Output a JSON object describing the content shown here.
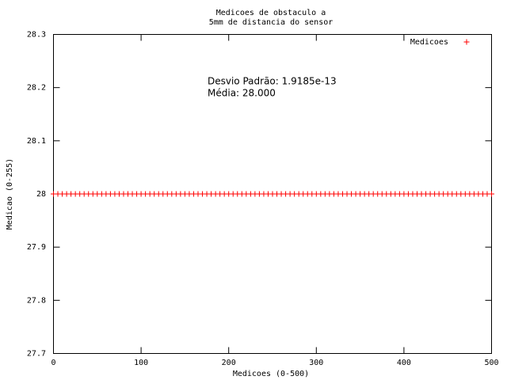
{
  "chart_data": {
    "type": "scatter",
    "title": [
      "Medicoes de obstaculo a",
      "5mm de distancia do sensor"
    ],
    "xlabel": "Medicoes (0-500)",
    "ylabel": "Medicao (0-255)",
    "annotations": [
      "Desvio Padrão: 1.9185e-13",
      "Média: 28.000"
    ],
    "legend": "top-right",
    "grid": false,
    "xlim": [
      0,
      500
    ],
    "xticks": [
      0,
      100,
      200,
      300,
      400,
      500
    ],
    "ylim": [
      27.7,
      28.3
    ],
    "yticks": [
      27.7,
      27.8,
      27.9,
      28,
      28.1,
      28.2,
      28.3
    ],
    "x": [
      0,
      5,
      10,
      15,
      20,
      25,
      30,
      35,
      40,
      45,
      50,
      55,
      60,
      65,
      70,
      75,
      80,
      85,
      90,
      95,
      100,
      105,
      110,
      115,
      120,
      125,
      130,
      135,
      140,
      145,
      150,
      155,
      160,
      165,
      170,
      175,
      180,
      185,
      190,
      195,
      200,
      205,
      210,
      215,
      220,
      225,
      230,
      235,
      240,
      245,
      250,
      255,
      260,
      265,
      270,
      275,
      280,
      285,
      290,
      295,
      300,
      305,
      310,
      315,
      320,
      325,
      330,
      335,
      340,
      345,
      350,
      355,
      360,
      365,
      370,
      375,
      380,
      385,
      390,
      395,
      400,
      405,
      410,
      415,
      420,
      425,
      430,
      435,
      440,
      445,
      450,
      455,
      460,
      465,
      470,
      475,
      480,
      485,
      490,
      495,
      500
    ],
    "series": [
      {
        "name": "Medicoes",
        "color": "#ff0000",
        "values": [
          28,
          28,
          28,
          28,
          28,
          28,
          28,
          28,
          28,
          28,
          28,
          28,
          28,
          28,
          28,
          28,
          28,
          28,
          28,
          28,
          28,
          28,
          28,
          28,
          28,
          28,
          28,
          28,
          28,
          28,
          28,
          28,
          28,
          28,
          28,
          28,
          28,
          28,
          28,
          28,
          28,
          28,
          28,
          28,
          28,
          28,
          28,
          28,
          28,
          28,
          28,
          28,
          28,
          28,
          28,
          28,
          28,
          28,
          28,
          28,
          28,
          28,
          28,
          28,
          28,
          28,
          28,
          28,
          28,
          28,
          28,
          28,
          28,
          28,
          28,
          28,
          28,
          28,
          28,
          28,
          28,
          28,
          28,
          28,
          28,
          28,
          28,
          28,
          28,
          28,
          28,
          28,
          28,
          28,
          28,
          28,
          28,
          28,
          28,
          28,
          28
        ]
      }
    ]
  }
}
